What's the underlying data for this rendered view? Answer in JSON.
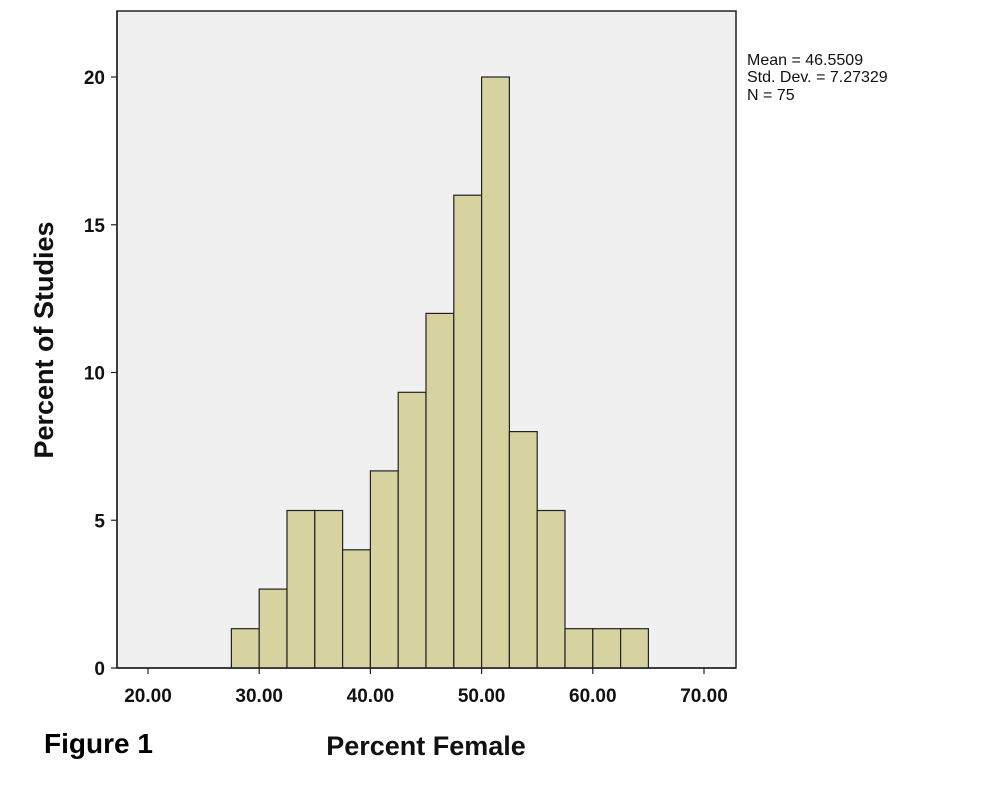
{
  "chart_data": {
    "type": "bar",
    "subtype": "histogram",
    "xlabel": "Percent Female",
    "ylabel": "Percent of Studies",
    "xlim": [
      17.5,
      73.75
    ],
    "ylim": [
      0,
      22
    ],
    "bin_width": 2.5,
    "xticks": [
      20,
      30,
      40,
      50,
      60,
      70
    ],
    "xtick_labels": [
      "20.00",
      "30.00",
      "40.00",
      "50.00",
      "60.00",
      "70.00"
    ],
    "yticks": [
      0,
      5,
      10,
      15,
      20
    ],
    "ytick_labels": [
      "0",
      "5",
      "10",
      "15",
      "20"
    ],
    "bins": [
      {
        "start": 27.5,
        "end": 30.0,
        "value": 1.33
      },
      {
        "start": 30.0,
        "end": 32.5,
        "value": 2.67
      },
      {
        "start": 32.5,
        "end": 35.0,
        "value": 5.33
      },
      {
        "start": 35.0,
        "end": 37.5,
        "value": 5.33
      },
      {
        "start": 37.5,
        "end": 40.0,
        "value": 4.0
      },
      {
        "start": 40.0,
        "end": 42.5,
        "value": 6.67
      },
      {
        "start": 42.5,
        "end": 45.0,
        "value": 9.33
      },
      {
        "start": 45.0,
        "end": 47.5,
        "value": 12.0
      },
      {
        "start": 47.5,
        "end": 50.0,
        "value": 16.0
      },
      {
        "start": 50.0,
        "end": 52.5,
        "value": 20.0
      },
      {
        "start": 52.5,
        "end": 55.0,
        "value": 8.0
      },
      {
        "start": 55.0,
        "end": 57.5,
        "value": 5.33
      },
      {
        "start": 57.5,
        "end": 60.0,
        "value": 1.33
      },
      {
        "start": 60.0,
        "end": 62.5,
        "value": 1.33
      },
      {
        "start": 62.5,
        "end": 65.0,
        "value": 1.33
      }
    ],
    "stats": [
      "Mean = 46.5509",
      "Std. Dev. = 7.27329",
      "N = 75"
    ],
    "grid": false,
    "legend": "none"
  },
  "figure_label": "Figure 1",
  "colors": {
    "bar_fill": "#d6d3a0",
    "plot_background": "#f0f0f0",
    "outline": "#222222"
  }
}
